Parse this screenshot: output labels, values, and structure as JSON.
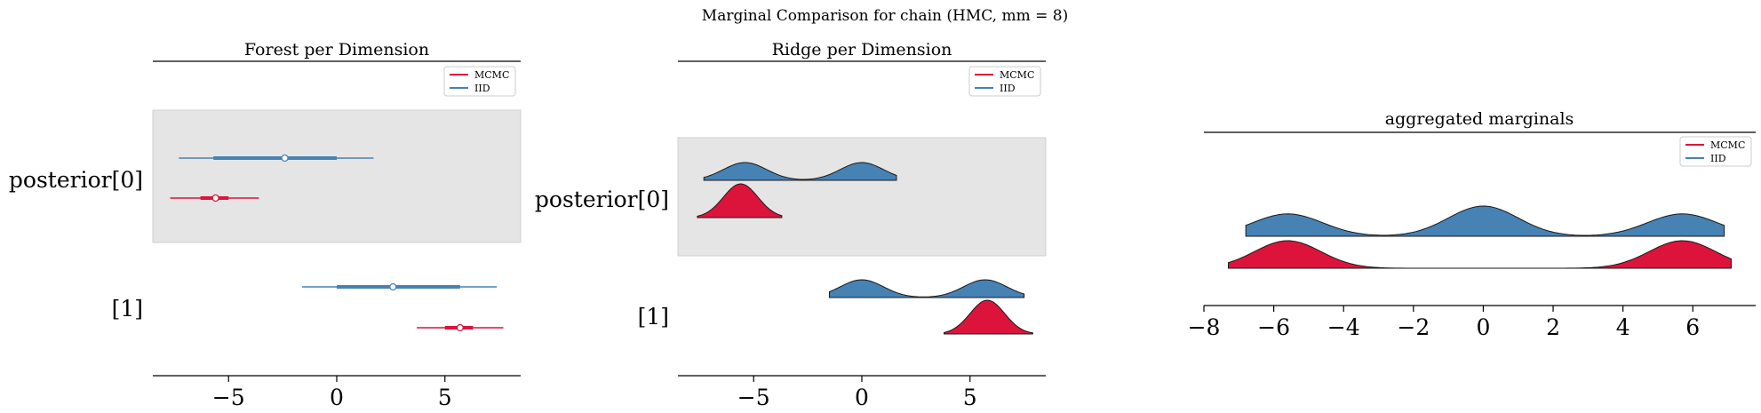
{
  "figure": {
    "suptitle": "Marginal Comparison for chain (HMC, mm = 8)"
  },
  "colors": {
    "mcmc": "#dc143c",
    "iid": "#4682b4",
    "band": "#e5e5e5",
    "band_edge": "#d0d0d0",
    "axis": "#000000"
  },
  "chart_data": [
    {
      "type": "forest",
      "title": "Forest per Dimension",
      "ylabels": [
        "posterior[0]",
        "[1]"
      ],
      "xlim": [
        -8.5,
        8.5
      ],
      "xticks": [
        -5,
        0,
        5
      ],
      "xtick_labels": [
        "−5",
        "0",
        "5"
      ],
      "legend": {
        "placement": "top-right",
        "entries": [
          {
            "label": "MCMC",
            "color": "#dc143c"
          },
          {
            "label": "IID",
            "color": "#4682b4"
          }
        ]
      },
      "series": [
        {
          "name": "IID",
          "dims": [
            {
              "lo": -7.3,
              "q1": -5.7,
              "median": -2.4,
              "q3": 0.0,
              "hi": 1.7
            },
            {
              "lo": -1.6,
              "q1": 0.0,
              "median": 2.6,
              "q3": 5.7,
              "hi": 7.4
            }
          ]
        },
        {
          "name": "MCMC",
          "dims": [
            {
              "lo": -7.7,
              "q1": -6.3,
              "median": -5.6,
              "q3": -5.0,
              "hi": -3.6
            },
            {
              "lo": 3.7,
              "q1": 5.0,
              "median": 5.7,
              "q3": 6.3,
              "hi": 7.7
            }
          ]
        }
      ]
    },
    {
      "type": "ridge",
      "title": "Ridge per Dimension",
      "ylabels": [
        "posterior[0]",
        "[1]"
      ],
      "xlim": [
        -8.5,
        8.5
      ],
      "xticks": [
        -5,
        0,
        5
      ],
      "xtick_labels": [
        "−5",
        "0",
        "5"
      ],
      "legend": {
        "placement": "top-right",
        "entries": [
          {
            "label": "MCMC",
            "color": "#dc143c"
          },
          {
            "label": "IID",
            "color": "#4682b4"
          }
        ]
      },
      "series": [
        {
          "name": "IID",
          "dims": [
            {
              "range": [
                -7.3,
                1.6
              ],
              "peaks": [
                {
                  "mu": -5.4,
                  "sd": 1.0,
                  "w": 1.0
                },
                {
                  "mu": 0.0,
                  "sd": 1.0,
                  "w": 1.0
                }
              ]
            },
            {
              "range": [
                -1.5,
                7.5
              ],
              "peaks": [
                {
                  "mu": 0.0,
                  "sd": 1.0,
                  "w": 1.0
                },
                {
                  "mu": 5.7,
                  "sd": 1.0,
                  "w": 1.0
                }
              ]
            }
          ]
        },
        {
          "name": "MCMC",
          "dims": [
            {
              "range": [
                -7.6,
                -3.7
              ],
              "peaks": [
                {
                  "mu": -5.6,
                  "sd": 0.8,
                  "w": 1.0
                }
              ]
            },
            {
              "range": [
                3.8,
                7.9
              ],
              "peaks": [
                {
                  "mu": 5.8,
                  "sd": 0.8,
                  "w": 1.0
                }
              ]
            }
          ]
        }
      ]
    },
    {
      "type": "ridge",
      "title": "aggregated marginals",
      "xlim": [
        -8,
        7.8
      ],
      "xticks": [
        -8,
        -6,
        -4,
        -2,
        0,
        2,
        4,
        6
      ],
      "xtick_labels": [
        "−8",
        "−6",
        "−4",
        "−2",
        "0",
        "2",
        "4",
        "6"
      ],
      "legend": {
        "placement": "top-right",
        "entries": [
          {
            "label": "MCMC",
            "color": "#dc143c"
          },
          {
            "label": "IID",
            "color": "#4682b4"
          }
        ]
      },
      "series": [
        {
          "name": "IID",
          "range": [
            -6.8,
            6.9
          ],
          "peaks": [
            {
              "mu": -5.6,
              "sd": 1.0,
              "w": 1.0
            },
            {
              "mu": 0.0,
              "sd": 1.0,
              "w": 1.35
            },
            {
              "mu": 5.7,
              "sd": 1.0,
              "w": 1.0
            }
          ]
        },
        {
          "name": "MCMC",
          "range": [
            -7.3,
            7.1
          ],
          "peaks": [
            {
              "mu": -5.6,
              "sd": 0.95,
              "w": 1.0
            },
            {
              "mu": 5.7,
              "sd": 0.95,
              "w": 1.0
            }
          ]
        }
      ]
    }
  ]
}
